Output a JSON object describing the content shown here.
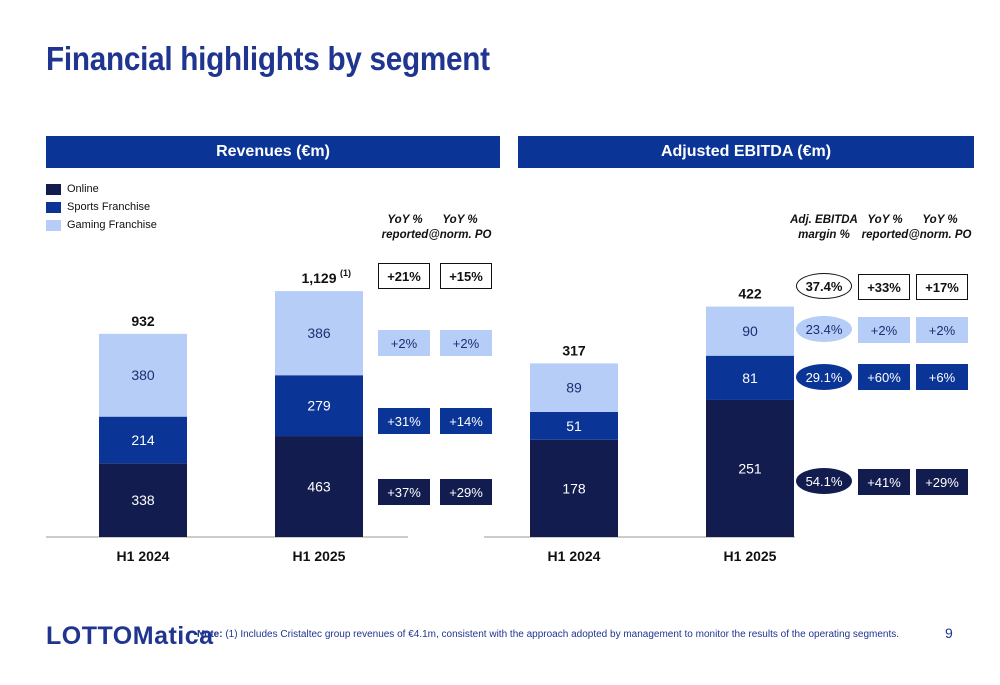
{
  "title": "Financial highlights by segment",
  "colors": {
    "online": "#131c4e",
    "sports": "#0a3496",
    "gaming": "#b6cdf7",
    "brand": "#1f3590"
  },
  "legend": [
    "Online",
    "Sports Franchise",
    "Gaming Franchise"
  ],
  "chart_data": [
    {
      "type": "bar",
      "stacked": true,
      "title": "Revenues (€m)",
      "categories": [
        "H1 2024",
        "H1 2025"
      ],
      "series": [
        {
          "name": "Online",
          "values": [
            338,
            463
          ]
        },
        {
          "name": "Sports Franchise",
          "values": [
            214,
            279
          ]
        },
        {
          "name": "Gaming Franchise",
          "values": [
            380,
            386
          ]
        }
      ],
      "totals": [
        "932",
        "1,129"
      ],
      "total_footnote": [
        "",
        "(1)"
      ],
      "yoy_headers": [
        "YoY %\nreported",
        "YoY %\n@norm. PO"
      ],
      "yoy": {
        "total": [
          "+21%",
          "+15%"
        ],
        "gaming": [
          "+2%",
          "+2%"
        ],
        "sports": [
          "+31%",
          "+14%"
        ],
        "online": [
          "+37%",
          "+29%"
        ]
      }
    },
    {
      "type": "bar",
      "stacked": true,
      "title": "Adjusted EBITDA (€m)",
      "categories": [
        "H1 2024",
        "H1 2025"
      ],
      "series": [
        {
          "name": "Online",
          "values": [
            178,
            251
          ]
        },
        {
          "name": "Sports Franchise",
          "values": [
            51,
            81
          ]
        },
        {
          "name": "Gaming Franchise",
          "values": [
            89,
            90
          ]
        }
      ],
      "totals": [
        "317",
        "422"
      ],
      "margin_header": "Adj. EBITDA\nmargin %",
      "margins": {
        "total": "37.4%",
        "gaming": "23.4%",
        "sports": "29.1%",
        "online": "54.1%"
      },
      "yoy_headers": [
        "YoY %\nreported",
        "YoY %\n@norm. PO"
      ],
      "yoy": {
        "total": [
          "+33%",
          "+17%"
        ],
        "gaming": [
          "+2%",
          "+2%"
        ],
        "sports": [
          "+60%",
          "+6%"
        ],
        "online": [
          "+41%",
          "+29%"
        ]
      }
    }
  ],
  "footer": {
    "logo": "LOTTOMatica",
    "note_label": "Note:",
    "note_text": " (1) Includes Cristaltec group revenues of €4.1m, consistent with the approach adopted by management to monitor the results of the operating segments.",
    "page": "9"
  }
}
